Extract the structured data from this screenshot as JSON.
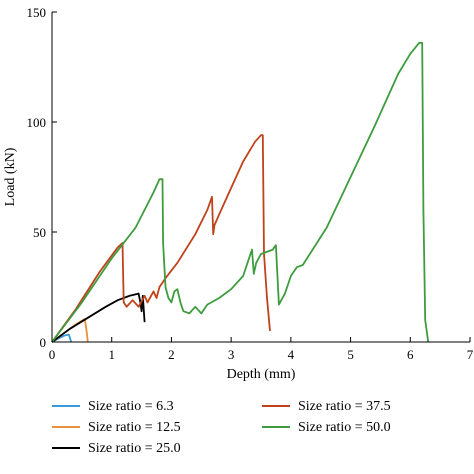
{
  "chart_data": {
    "type": "line",
    "title": "",
    "xlabel": "Depth (mm)",
    "ylabel": "Load (kN)",
    "xlim": [
      0,
      7
    ],
    "ylim": [
      0,
      150
    ],
    "x_ticks": [
      "0",
      "1",
      "2",
      "3",
      "4",
      "5",
      "6",
      "7"
    ],
    "y_ticks": [
      "0",
      "50",
      "100",
      "150"
    ],
    "grid": false,
    "legend_position": "bottom",
    "series": [
      {
        "name": "Size ratio = 6.3",
        "color": "#3a9ad9",
        "x": [
          0,
          0.1,
          0.2,
          0.28,
          0.3,
          0.32
        ],
        "y": [
          0,
          1.5,
          2.8,
          3.4,
          2.0,
          0
        ]
      },
      {
        "name": "Size ratio = 12.5",
        "color": "#e8913a",
        "x": [
          0,
          0.2,
          0.4,
          0.55,
          0.58,
          0.6
        ],
        "y": [
          0,
          4,
          8,
          10.5,
          5,
          0
        ]
      },
      {
        "name": "Size ratio = 25.0",
        "color": "#000000",
        "x": [
          0,
          0.3,
          0.6,
          0.9,
          1.1,
          1.3,
          1.45,
          1.48,
          1.5,
          1.52,
          1.55
        ],
        "y": [
          0,
          6,
          11,
          16,
          19,
          21,
          22,
          18,
          14,
          21,
          9
        ]
      },
      {
        "name": "Size ratio = 37.5",
        "color": "#c0421b",
        "x": [
          0,
          0.4,
          0.8,
          1.1,
          1.18,
          1.2,
          1.25,
          1.35,
          1.45,
          1.55,
          1.6,
          1.7,
          1.75,
          1.8,
          1.9,
          2.1,
          2.4,
          2.6,
          2.68,
          2.7,
          2.72,
          2.8,
          3.0,
          3.2,
          3.4,
          3.5,
          3.53,
          3.55,
          3.6,
          3.65
        ],
        "y": [
          0,
          15,
          32,
          43,
          45,
          18,
          16,
          19,
          16,
          21,
          18,
          23,
          20,
          25,
          29,
          36,
          49,
          60,
          66,
          49,
          53,
          58,
          70,
          82,
          91,
          94,
          94,
          40,
          20,
          5
        ]
      },
      {
        "name": "Size ratio = 50.0",
        "color": "#3e9c3e",
        "x": [
          0,
          0.5,
          1.0,
          1.4,
          1.7,
          1.8,
          1.85,
          1.86,
          1.9,
          1.95,
          2.0,
          2.05,
          2.1,
          2.15,
          2.2,
          2.3,
          2.4,
          2.5,
          2.6,
          2.8,
          3.0,
          3.2,
          3.35,
          3.38,
          3.42,
          3.5,
          3.7,
          3.72,
          3.75,
          3.8,
          3.9,
          4.0,
          4.1,
          4.2,
          4.6,
          5.0,
          5.4,
          5.8,
          6.0,
          6.15,
          6.2,
          6.22,
          6.25,
          6.3
        ],
        "y": [
          0,
          18,
          38,
          52,
          68,
          74,
          74,
          45,
          25,
          20,
          18,
          23,
          24,
          18,
          14,
          13,
          16,
          13,
          17,
          20,
          24,
          30,
          42,
          31,
          36,
          40,
          42,
          43,
          44,
          17,
          22,
          30,
          34,
          35,
          52,
          75,
          98,
          122,
          131,
          136,
          136,
          60,
          10,
          0
        ]
      }
    ]
  }
}
